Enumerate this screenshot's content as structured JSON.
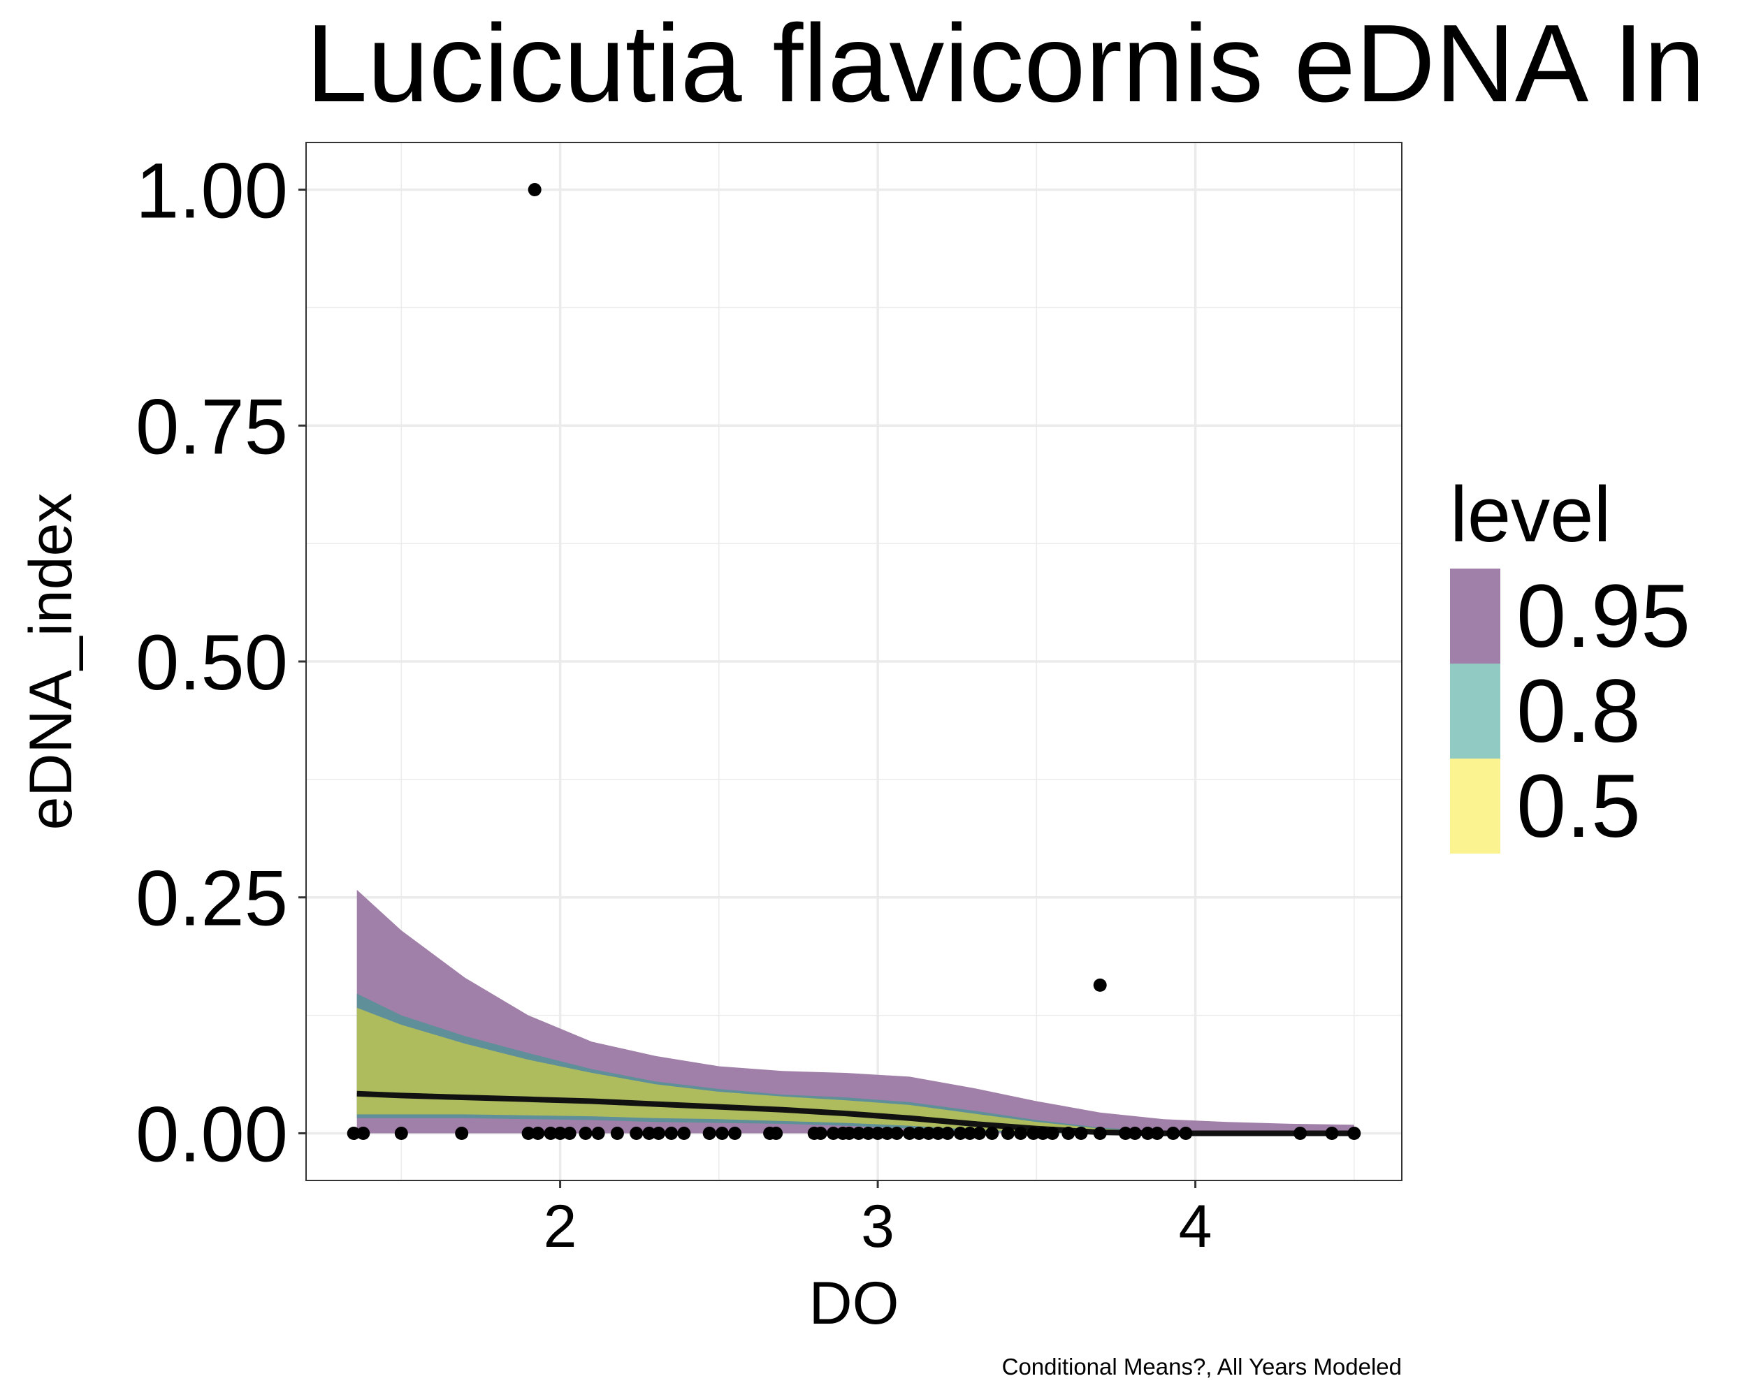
{
  "chart_data": {
    "type": "line",
    "title": "Lucicutia flavicornis eDNA In",
    "xlabel": "DO",
    "ylabel": "eDNA_index",
    "caption": "Conditional Means?, All Years Modeled",
    "xlim": [
      1.2,
      4.65
    ],
    "ylim": [
      -0.05,
      1.05
    ],
    "x_ticks": [
      2,
      3,
      4
    ],
    "x_tick_labels": [
      "2",
      "3",
      "4"
    ],
    "y_ticks": [
      0,
      0.25,
      0.5,
      0.75,
      1
    ],
    "y_tick_labels": [
      "0.00",
      "0.25",
      "0.50",
      "0.75",
      "1.00"
    ],
    "grid": true,
    "legend": {
      "title": "level",
      "position": "right",
      "items": [
        {
          "label": "0.95",
          "color": "#a07fa8"
        },
        {
          "label": "0.8",
          "color": "#91c9c3"
        },
        {
          "label": "0.5",
          "color": "#fbf290"
        }
      ]
    },
    "colors": {
      "band_95": "#a07fa8",
      "band_80": "#5f8f99",
      "band_50": "#aebc5e",
      "mean_line": "#111111",
      "points": "#000000",
      "grid": "#ebebeb",
      "panel_border": "#333333"
    },
    "bands": {
      "x": [
        1.36,
        1.5,
        1.7,
        1.9,
        2.1,
        2.3,
        2.5,
        2.7,
        2.9,
        3.1,
        3.3,
        3.5,
        3.7,
        3.9,
        4.1,
        4.3,
        4.5
      ],
      "mean": [
        0.042,
        0.04,
        0.038,
        0.036,
        0.034,
        0.031,
        0.028,
        0.025,
        0.021,
        0.016,
        0.01,
        0.005,
        0.001,
        0.0,
        0.0,
        0.0,
        0.0
      ],
      "level_95": {
        "lower": [
          0.0,
          0.0,
          0.0,
          0.0,
          0.0,
          0.0,
          0.0,
          0.0,
          0.0,
          0.0,
          0.0,
          0.0,
          0.0,
          0.0,
          0.0,
          0.0,
          0.0
        ],
        "upper": [
          0.258,
          0.215,
          0.165,
          0.125,
          0.097,
          0.082,
          0.071,
          0.066,
          0.064,
          0.06,
          0.048,
          0.034,
          0.022,
          0.015,
          0.012,
          0.01,
          0.009
        ]
      },
      "level_80": {
        "lower": [
          0.016,
          0.016,
          0.016,
          0.015,
          0.014,
          0.012,
          0.011,
          0.01,
          0.008,
          0.005,
          0.002,
          0.0,
          0.0,
          0.0,
          0.0,
          0.0,
          0.0
        ],
        "upper": [
          0.148,
          0.125,
          0.103,
          0.085,
          0.068,
          0.055,
          0.047,
          0.041,
          0.038,
          0.033,
          0.024,
          0.014,
          0.006,
          0.002,
          0.0,
          0.0,
          0.0
        ]
      },
      "level_50": {
        "lower": [
          0.02,
          0.02,
          0.02,
          0.019,
          0.018,
          0.016,
          0.015,
          0.013,
          0.011,
          0.008,
          0.004,
          0.001,
          0.0,
          0.0,
          0.0,
          0.0,
          0.0
        ],
        "upper": [
          0.133,
          0.115,
          0.095,
          0.078,
          0.064,
          0.052,
          0.044,
          0.039,
          0.035,
          0.03,
          0.021,
          0.012,
          0.005,
          0.001,
          0.0,
          0.0,
          0.0
        ]
      }
    },
    "points": {
      "x": [
        1.92,
        3.7,
        1.35,
        1.38,
        1.5,
        1.69,
        1.9,
        1.93,
        1.97,
        2.0,
        2.03,
        2.08,
        2.12,
        2.18,
        2.24,
        2.28,
        2.31,
        2.35,
        2.39,
        2.47,
        2.51,
        2.55,
        2.66,
        2.68,
        2.8,
        2.82,
        2.86,
        2.89,
        2.91,
        2.94,
        2.97,
        3.0,
        3.03,
        3.06,
        3.1,
        3.13,
        3.16,
        3.19,
        3.22,
        3.26,
        3.29,
        3.32,
        3.36,
        3.41,
        3.45,
        3.49,
        3.52,
        3.55,
        3.6,
        3.64,
        3.7,
        3.78,
        3.81,
        3.85,
        3.88,
        3.93,
        3.97,
        4.33,
        4.43,
        4.5
      ],
      "y": [
        1.0,
        0.157,
        0,
        0,
        0,
        0,
        0,
        0,
        0,
        0,
        0,
        0,
        0,
        0,
        0,
        0,
        0,
        0,
        0,
        0,
        0,
        0,
        0,
        0,
        0,
        0,
        0,
        0,
        0,
        0,
        0,
        0,
        0,
        0,
        0,
        0,
        0,
        0,
        0,
        0,
        0,
        0,
        0,
        0,
        0,
        0,
        0,
        0,
        0,
        0,
        0,
        0,
        0,
        0,
        0,
        0,
        0,
        0,
        0,
        0
      ]
    }
  }
}
